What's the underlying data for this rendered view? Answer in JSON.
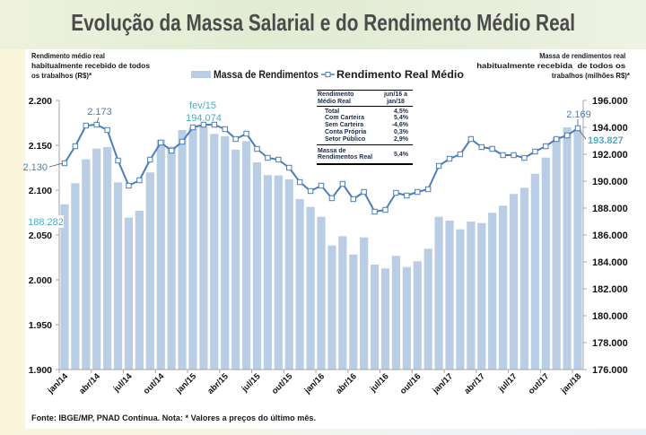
{
  "title": "Evolução da Massa Salarial e do Rendimento Médio Real",
  "source_note": "Fonte: IBGE/MP, PNAD Contínua. Nota: * Valores a preços do último mês.",
  "summary_table": {
    "header_left": [
      "Rendimento",
      "Médio Real"
    ],
    "header_right": [
      "jun/16 a",
      "jan/18"
    ],
    "rows": [
      {
        "label": "Total",
        "value": "4,5%"
      },
      {
        "label": "Com Carteira",
        "value": "5,4%"
      },
      {
        "label": "Sem Carteira",
        "value": "-4,6%"
      },
      {
        "label": "Conta Própria",
        "value": "0,3%"
      },
      {
        "label": "Setor Público",
        "value": "2,9%"
      }
    ],
    "footer_label": [
      "Massa de",
      "Rendimentos Real"
    ],
    "footer_value": "5,4%"
  },
  "chart_data": {
    "type": "bar",
    "title": "Evolução da Massa Salarial e do Rendimento Médio Real",
    "x_ticks": [
      {
        "label": "jan/14",
        "index": 0
      },
      {
        "label": "abr/14",
        "index": 3
      },
      {
        "label": "jul/14",
        "index": 6
      },
      {
        "label": "out/14",
        "index": 9
      },
      {
        "label": "jan/15",
        "index": 12
      },
      {
        "label": "abr/15",
        "index": 15
      },
      {
        "label": "jul/15",
        "index": 18
      },
      {
        "label": "out/15",
        "index": 21
      },
      {
        "label": "jan/16",
        "index": 24
      },
      {
        "label": "abr/16",
        "index": 27
      },
      {
        "label": "jul/16",
        "index": 30
      },
      {
        "label": "out/16",
        "index": 33
      },
      {
        "label": "jan/17",
        "index": 36
      },
      {
        "label": "abr/17",
        "index": 39
      },
      {
        "label": "jul/17",
        "index": 42
      },
      {
        "label": "out/17",
        "index": 45
      },
      {
        "label": "jan/18",
        "index": 48
      }
    ],
    "y_left": {
      "label_lines": [
        "Rendimento médio real",
        "habitualmente recebido de todos",
        "os trabalhos (R$)*"
      ],
      "range": [
        1900,
        2200
      ],
      "tick_values": [
        2200,
        2150,
        2100,
        2050,
        2000,
        1950,
        1900
      ],
      "tick_labels": [
        "2.200",
        "2.150",
        "2.100",
        "2.050",
        "2.000",
        "1.950",
        "1.900"
      ]
    },
    "y_right": {
      "label_lines": [
        "Massa de rendimentos real",
        "habitualmente recebida  de todos os",
        "trabalhos (milhões R$)*"
      ],
      "range": [
        176000,
        196000
      ],
      "tick_values": [
        196000,
        194000,
        192000,
        190000,
        188000,
        186000,
        184000,
        182000,
        180000,
        178000,
        176000
      ],
      "tick_labels": [
        "196.000",
        "194.000",
        "192.000",
        "190.000",
        "188.000",
        "186.000",
        "184.000",
        "182.000",
        "180.000",
        "178.000",
        "176.000"
      ]
    },
    "legend_position": "top-center",
    "grid": false,
    "series": [
      {
        "name": "Massa de Rendimentos",
        "type": "bar",
        "axis": "right",
        "color": "#b9cde5",
        "values": [
          188282,
          189850,
          191620,
          192420,
          192530,
          189910,
          187290,
          187800,
          190650,
          193090,
          192580,
          193800,
          193950,
          194074,
          193510,
          193340,
          192340,
          192980,
          191400,
          190450,
          190430,
          190130,
          188670,
          188090,
          187350,
          185220,
          185910,
          184550,
          185820,
          183800,
          183510,
          184450,
          183620,
          184050,
          184980,
          187350,
          187070,
          186420,
          187000,
          186890,
          187650,
          188180,
          189050,
          189510,
          190550,
          191750,
          193250,
          194000,
          193827
        ]
      },
      {
        "name": "Rendimento Real Médio",
        "type": "line",
        "axis": "left",
        "color": "#4a7ebb",
        "values": [
          2130,
          2149,
          2172,
          2173,
          2167,
          2133,
          2105,
          2111,
          2134,
          2153,
          2144,
          2154,
          2170,
          2173,
          2173,
          2168,
          2157,
          2163,
          2146,
          2136,
          2134,
          2125,
          2109,
          2099,
          2105,
          2091,
          2107,
          2090,
          2098,
          2076,
          2078,
          2097,
          2094,
          2098,
          2101,
          2127,
          2135,
          2140,
          2157,
          2148,
          2146,
          2139,
          2139,
          2136,
          2143,
          2149,
          2157,
          2161,
          2169
        ]
      }
    ],
    "annotations": [
      {
        "text": "2.173",
        "series": "Rendimento Real Médio",
        "index": 3
      },
      {
        "text": "2.130",
        "series": "Rendimento Real Médio",
        "index": 0
      },
      {
        "text": "188.282",
        "series": "Massa de Rendimentos",
        "index": 0
      },
      {
        "text": "fev/15",
        "series": "Massa de Rendimentos",
        "index": 13
      },
      {
        "text": "194.074",
        "series": "Massa de Rendimentos",
        "index": 13
      },
      {
        "text": "2.169",
        "series": "Rendimento Real Médio",
        "index": 48
      },
      {
        "text": "193.827",
        "series": "Massa de Rendimentos",
        "index": 48
      }
    ],
    "annotation_colors": {
      "line_value": "#4a7ebb",
      "bar_value": "#4bacc6"
    }
  }
}
